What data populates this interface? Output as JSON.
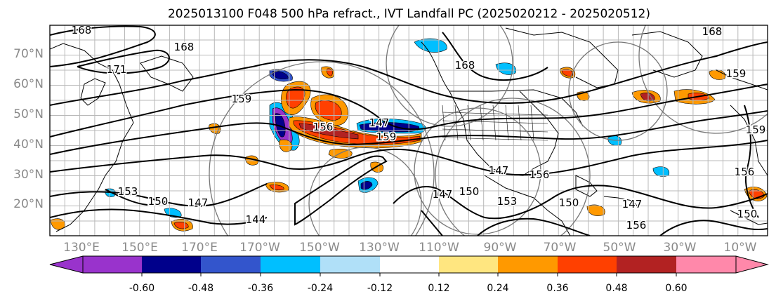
{
  "title": "2025013100 F048 500 hPa refract., IVT Landfall PC (2025020212 - 2025020512)",
  "lat_labels": [
    "70°N",
    "60°N",
    "50°N",
    "40°N",
    "30°N",
    "20°N"
  ],
  "lon_labels": [
    "130°E",
    "150°E",
    "170°E",
    "170°W",
    "150°W",
    "130°W",
    "110°W",
    "90°W",
    "70°W",
    "50°W",
    "30°W",
    "10°W"
  ],
  "colorbar": {
    "colors": [
      "#9933cc",
      "#00008b",
      "#3355cc",
      "#00bfff",
      "#b0e0f8",
      "#ffffff",
      "#ffe680",
      "#ff9900",
      "#ff4000",
      "#b22222",
      "#ff88aa"
    ],
    "tick_labels": [
      "-0.60",
      "-0.48",
      "-0.36",
      "-0.24",
      "-0.12",
      "0.12",
      "0.24",
      "0.36",
      "0.48",
      "0.60"
    ]
  },
  "contour_labels": [
    "168",
    "171",
    "168",
    "159",
    "156",
    "159",
    "168",
    "159",
    "168",
    "153",
    "150",
    "147",
    "144",
    "147",
    "150",
    "147",
    "153",
    "156",
    "150",
    "147",
    "156",
    "159",
    "150",
    "147",
    "156"
  ]
}
